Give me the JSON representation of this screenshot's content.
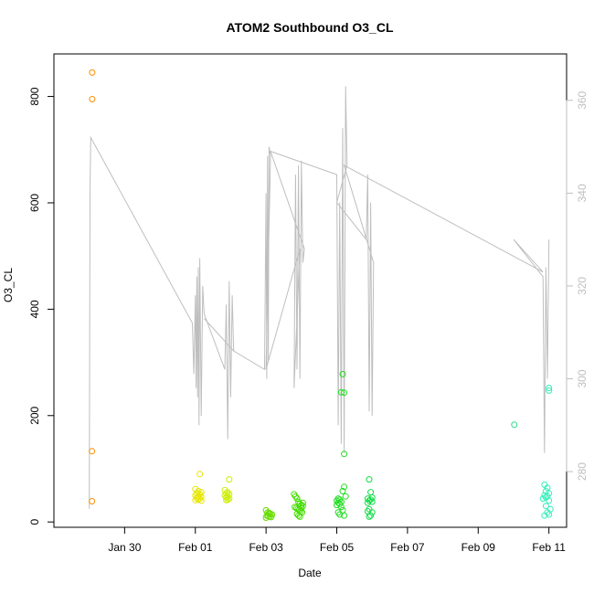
{
  "chart_data": {
    "type": "scatter",
    "title": "ATOM2 Southbound O3_CL",
    "xlabel": "Date",
    "ylabel": "O3_CL",
    "x_type": "date",
    "xlim": [
      "2018-01-28T00:00",
      "2018-02-11T12:00"
    ],
    "x_ticks": [
      {
        "date": "2018-01-30",
        "label": "Jan 30"
      },
      {
        "date": "2018-02-01",
        "label": "Feb 01"
      },
      {
        "date": "2018-02-03",
        "label": "Feb 03"
      },
      {
        "date": "2018-02-05",
        "label": "Feb 05"
      },
      {
        "date": "2018-02-07",
        "label": "Feb 07"
      },
      {
        "date": "2018-02-09",
        "label": "Feb 09"
      },
      {
        "date": "2018-02-11",
        "label": "Feb 11"
      }
    ],
    "ylim": [
      -10,
      880
    ],
    "y_ticks": [
      0,
      200,
      400,
      600,
      800
    ],
    "y2lim": [
      268,
      370
    ],
    "y2_ticks": [
      280,
      300,
      320,
      340,
      360
    ],
    "grid": false,
    "colors": {
      "axis": "#000000",
      "secondary_axis": "#bebebe",
      "line": "#bebebe"
    },
    "series": [
      {
        "type": "scatter",
        "color": "#ff8c00",
        "points": [
          [
            "2018-01-29T02:00",
            845
          ],
          [
            "2018-01-29T02:00",
            795
          ],
          [
            "2018-01-29T01:50",
            133
          ],
          [
            "2018-01-29T01:50",
            39
          ]
        ]
      },
      {
        "type": "scatter",
        "color": "#e6e600",
        "points": [
          [
            "2018-02-01T03:00",
            90
          ],
          [
            "2018-02-01T00:00",
            62
          ],
          [
            "2018-02-01T02:00",
            58
          ],
          [
            "2018-02-01T04:00",
            56
          ],
          [
            "2018-02-01T01:00",
            54
          ],
          [
            "2018-02-01T03:00",
            52
          ],
          [
            "2018-02-01T00:00",
            50
          ],
          [
            "2018-02-01T02:00",
            48
          ],
          [
            "2018-02-01T04:00",
            47
          ],
          [
            "2018-02-01T01:00",
            45
          ],
          [
            "2018-02-01T03:00",
            44
          ],
          [
            "2018-02-01T02:00",
            42
          ],
          [
            "2018-02-01T00:00",
            41
          ],
          [
            "2018-02-01T04:00",
            40
          ]
        ]
      },
      {
        "type": "scatter",
        "color": "#ccee00",
        "points": [
          [
            "2018-02-01T23:00",
            80
          ],
          [
            "2018-02-01T20:00",
            60
          ],
          [
            "2018-02-01T22:00",
            56
          ],
          [
            "2018-02-01T21:00",
            54
          ],
          [
            "2018-02-01T23:00",
            52
          ],
          [
            "2018-02-01T20:00",
            50
          ],
          [
            "2018-02-01T22:00",
            48
          ],
          [
            "2018-02-01T21:00",
            46
          ],
          [
            "2018-02-01T23:00",
            44
          ],
          [
            "2018-02-01T22:00",
            42
          ],
          [
            "2018-02-01T21:00",
            41
          ]
        ]
      },
      {
        "type": "scatter",
        "color": "#66dd00",
        "points": [
          [
            "2018-02-03T00:00",
            22
          ],
          [
            "2018-02-03T01:00",
            18
          ],
          [
            "2018-02-03T02:00",
            16
          ],
          [
            "2018-02-03T03:00",
            15
          ],
          [
            "2018-02-03T04:00",
            14
          ],
          [
            "2018-02-03T00:30",
            12
          ],
          [
            "2018-02-03T01:30",
            11
          ],
          [
            "2018-02-03T02:30",
            10
          ],
          [
            "2018-02-03T03:30",
            9
          ],
          [
            "2018-02-03T00:00",
            8
          ],
          [
            "2018-02-03T02:00",
            17
          ]
        ]
      },
      {
        "type": "scatter",
        "color": "#44dd00",
        "points": [
          [
            "2018-02-03T19:00",
            52
          ],
          [
            "2018-02-03T20:00",
            48
          ],
          [
            "2018-02-03T21:00",
            44
          ],
          [
            "2018-02-03T22:00",
            38
          ],
          [
            "2018-02-03T23:00",
            34
          ],
          [
            "2018-02-04T00:00",
            32
          ],
          [
            "2018-02-04T01:00",
            30
          ],
          [
            "2018-02-03T19:30",
            28
          ],
          [
            "2018-02-03T20:30",
            26
          ],
          [
            "2018-02-03T21:30",
            24
          ],
          [
            "2018-02-03T22:30",
            22
          ],
          [
            "2018-02-03T23:30",
            20
          ],
          [
            "2018-02-04T00:30",
            18
          ],
          [
            "2018-02-03T21:00",
            15
          ],
          [
            "2018-02-03T22:00",
            12
          ],
          [
            "2018-02-03T23:00",
            10
          ],
          [
            "2018-02-04T00:00",
            26
          ],
          [
            "2018-02-04T01:00",
            36
          ]
        ]
      },
      {
        "type": "scatter",
        "color": "#22dd22",
        "points": [
          [
            "2018-02-05T04:00",
            278
          ],
          [
            "2018-02-05T03:00",
            244
          ],
          [
            "2018-02-05T05:00",
            243
          ],
          [
            "2018-02-05T05:00",
            128
          ],
          [
            "2018-02-05T05:00",
            66
          ],
          [
            "2018-02-05T04:00",
            58
          ],
          [
            "2018-02-05T06:00",
            48
          ],
          [
            "2018-02-05T01:00",
            44
          ],
          [
            "2018-02-05T02:00",
            42
          ],
          [
            "2018-02-05T00:00",
            40
          ],
          [
            "2018-02-05T03:00",
            38
          ],
          [
            "2018-02-05T01:00",
            36
          ],
          [
            "2018-02-05T02:00",
            34
          ],
          [
            "2018-02-05T00:00",
            32
          ],
          [
            "2018-02-05T03:00",
            28
          ],
          [
            "2018-02-05T04:00",
            22
          ],
          [
            "2018-02-05T01:00",
            18
          ],
          [
            "2018-02-05T02:00",
            14
          ],
          [
            "2018-02-05T05:00",
            12
          ]
        ]
      },
      {
        "type": "scatter",
        "color": "#11dd44",
        "points": [
          [
            "2018-02-05T22:00",
            80
          ],
          [
            "2018-02-05T23:00",
            56
          ],
          [
            "2018-02-06T00:00",
            46
          ],
          [
            "2018-02-05T21:00",
            44
          ],
          [
            "2018-02-05T23:00",
            42
          ],
          [
            "2018-02-05T22:00",
            40
          ],
          [
            "2018-02-06T00:00",
            38
          ],
          [
            "2018-02-05T21:00",
            36
          ],
          [
            "2018-02-05T22:00",
            24
          ],
          [
            "2018-02-05T21:00",
            20
          ],
          [
            "2018-02-06T00:00",
            18
          ],
          [
            "2018-02-05T23:00",
            12
          ],
          [
            "2018-02-05T22:00",
            10
          ]
        ]
      },
      {
        "type": "scatter",
        "color": "#22dd88",
        "points": [
          [
            "2018-02-10T00:30",
            183
          ]
        ]
      },
      {
        "type": "scatter",
        "color": "#33eebb",
        "points": [
          [
            "2018-02-11T00:00",
            252
          ],
          [
            "2018-02-11T00:00",
            247
          ],
          [
            "2018-02-10T21:00",
            70
          ],
          [
            "2018-02-10T23:00",
            64
          ],
          [
            "2018-02-10T22:00",
            58
          ],
          [
            "2018-02-11T00:00",
            54
          ],
          [
            "2018-02-10T21:00",
            50
          ],
          [
            "2018-02-10T23:00",
            48
          ],
          [
            "2018-02-10T22:00",
            46
          ],
          [
            "2018-02-10T20:00",
            44
          ],
          [
            "2018-02-11T00:00",
            40
          ],
          [
            "2018-02-10T22:00",
            30
          ],
          [
            "2018-02-11T01:00",
            24
          ],
          [
            "2018-02-10T23:00",
            18
          ],
          [
            "2018-02-11T00:00",
            14
          ],
          [
            "2018-02-10T21:00",
            12
          ]
        ]
      },
      {
        "type": "line",
        "axis": "right",
        "color": "#bebebe",
        "points": [
          [
            "2018-01-29T00:00",
            272
          ],
          [
            "2018-01-29T00:30",
            340
          ],
          [
            "2018-01-29T01:00",
            352
          ],
          [
            "2018-01-31T22:00",
            312
          ],
          [
            "2018-01-31T23:00",
            301
          ],
          [
            "2018-02-01T00:00",
            318
          ],
          [
            "2018-02-01T00:30",
            298
          ],
          [
            "2018-02-01T01:00",
            322
          ],
          [
            "2018-02-01T01:30",
            296
          ],
          [
            "2018-02-01T02:00",
            324
          ],
          [
            "2018-02-01T02:30",
            290
          ],
          [
            "2018-02-01T03:00",
            326
          ],
          [
            "2018-02-01T04:00",
            292
          ],
          [
            "2018-02-01T05:00",
            320
          ],
          [
            "2018-02-01T06:00",
            314
          ],
          [
            "2018-02-01T20:00",
            302
          ],
          [
            "2018-02-01T21:00",
            316
          ],
          [
            "2018-02-01T22:00",
            287
          ],
          [
            "2018-02-01T23:00",
            321
          ],
          [
            "2018-02-02T00:00",
            296
          ],
          [
            "2018-02-02T01:00",
            318
          ],
          [
            "2018-02-02T02:00",
            306
          ],
          [
            "2018-02-01T06:00",
            313
          ],
          [
            "2018-02-02T02:00",
            306
          ],
          [
            "2018-02-02T23:00",
            302
          ],
          [
            "2018-02-03T00:00",
            340
          ],
          [
            "2018-02-03T00:30",
            300
          ],
          [
            "2018-02-03T01:00",
            348
          ],
          [
            "2018-02-03T01:30",
            304
          ],
          [
            "2018-02-03T02:00",
            350
          ],
          [
            "2018-02-03T03:00",
            348
          ],
          [
            "2018-02-03T00:00",
            302
          ],
          [
            "2018-02-03T23:00",
            328
          ],
          [
            "2018-02-03T19:00",
            298
          ],
          [
            "2018-02-03T20:00",
            344
          ],
          [
            "2018-02-03T21:00",
            302
          ],
          [
            "2018-02-03T22:00",
            346
          ],
          [
            "2018-02-03T23:00",
            300
          ],
          [
            "2018-02-04T00:00",
            347
          ],
          [
            "2018-02-04T01:00",
            325
          ],
          [
            "2018-02-04T02:00",
            328
          ],
          [
            "2018-02-03T03:00",
            349
          ],
          [
            "2018-02-05T00:00",
            344
          ],
          [
            "2018-02-05T01:00",
            290
          ],
          [
            "2018-02-05T02:00",
            338
          ],
          [
            "2018-02-05T03:00",
            286
          ],
          [
            "2018-02-05T04:00",
            354
          ],
          [
            "2018-02-05T05:00",
            284
          ],
          [
            "2018-02-05T06:00",
            363
          ],
          [
            "2018-02-05T07:00",
            346
          ],
          [
            "2018-02-05T00:00",
            338
          ],
          [
            "2018-02-05T20:00",
            330
          ],
          [
            "2018-02-05T21:00",
            344
          ],
          [
            "2018-02-05T22:00",
            293
          ],
          [
            "2018-02-05T23:00",
            338
          ],
          [
            "2018-02-06T00:00",
            292
          ],
          [
            "2018-02-06T01:00",
            325
          ],
          [
            "2018-02-05T05:00",
            346
          ],
          [
            "2018-02-10T20:00",
            323
          ],
          [
            "2018-02-10T00:00",
            330
          ],
          [
            "2018-02-10T20:00",
            322
          ],
          [
            "2018-02-10T21:00",
            284
          ],
          [
            "2018-02-10T22:00",
            324
          ],
          [
            "2018-02-10T23:00",
            300
          ],
          [
            "2018-02-11T00:00",
            330
          ]
        ]
      }
    ]
  }
}
